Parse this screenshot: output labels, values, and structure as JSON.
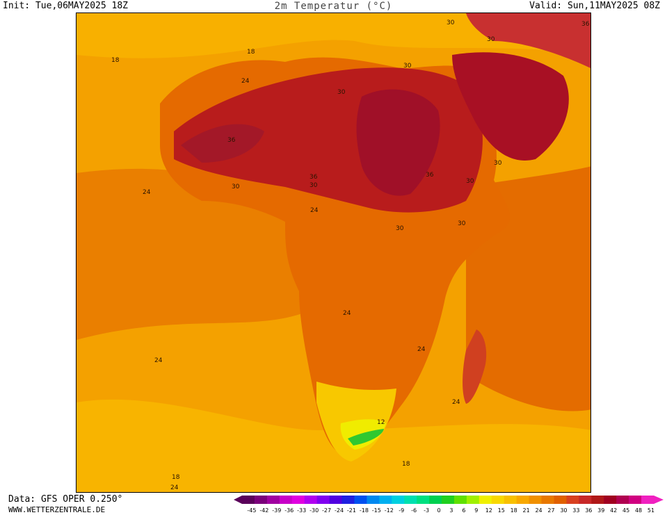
{
  "header": {
    "init": "Init: Tue,06MAY2025 18Z",
    "title": "2m Temperatur (°C)",
    "valid": "Valid: Sun,11MAY2025 08Z"
  },
  "footer": {
    "source": "Data: GFS OPER 0.250°",
    "website": "WWW.WETTERZENTRALE.DE"
  },
  "legend": {
    "ticks": [
      "-45",
      "-42",
      "-39",
      "-36",
      "-33",
      "-30",
      "-27",
      "-24",
      "-21",
      "-18",
      "-15",
      "-12",
      "-9",
      "-6",
      "-3",
      "0",
      "3",
      "6",
      "9",
      "12",
      "15",
      "18",
      "21",
      "24",
      "27",
      "30",
      "33",
      "36",
      "39",
      "42",
      "45",
      "48",
      "51"
    ],
    "colors": [
      "#5a005a",
      "#7a007a",
      "#a000a0",
      "#c800c8",
      "#e000e0",
      "#b000f0",
      "#8000f0",
      "#5000e0",
      "#2020e0",
      "#0050f0",
      "#0088f0",
      "#00b0f0",
      "#00d0e0",
      "#00e0b0",
      "#00e080",
      "#00d050",
      "#20d020",
      "#60e000",
      "#a0f000",
      "#f0f000",
      "#f8d800",
      "#f8c000",
      "#f8a800",
      "#f09000",
      "#e87800",
      "#e06000",
      "#d84020",
      "#c82828",
      "#b01818",
      "#a00020",
      "#b00050",
      "#d00080",
      "#f020c0"
    ]
  },
  "map": {
    "contour_labels": [
      "18",
      "18",
      "24",
      "24",
      "24",
      "24",
      "24",
      "24",
      "24",
      "24",
      "30",
      "30",
      "30",
      "30",
      "30",
      "30",
      "30",
      "30",
      "30",
      "30",
      "36",
      "36",
      "36",
      "36",
      "12",
      "18",
      "18"
    ]
  }
}
